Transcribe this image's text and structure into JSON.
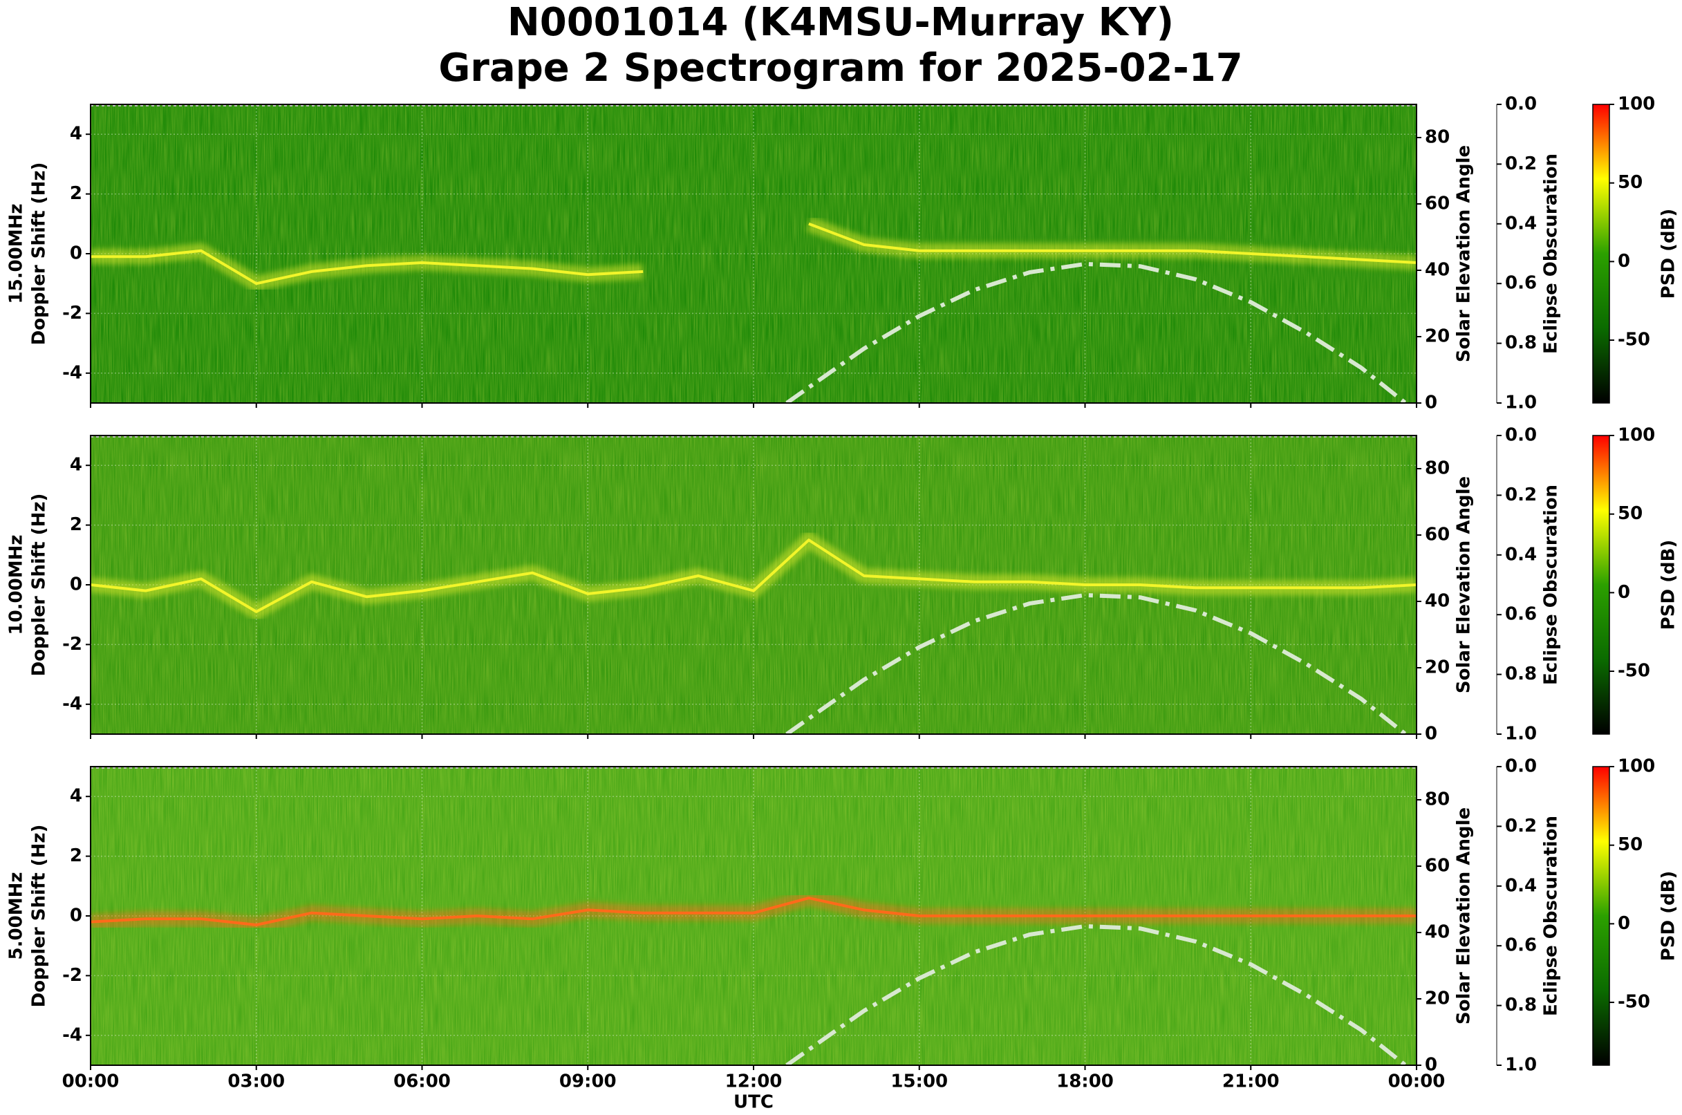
{
  "title": "N0001014 (K4MSU-Murray KY)",
  "subtitle": "Grape 2 Spectrogram for 2025-02-17",
  "chart_data": [
    {
      "type": "spectrogram",
      "ylabel": [
        "15.00MHz",
        "Doppler Shift (Hz)"
      ],
      "ylim": [
        -5,
        5
      ],
      "yticks": [
        -4,
        -2,
        0,
        2,
        4
      ],
      "y2label": "Solar Elevation Angle",
      "y2lim": [
        0,
        90
      ],
      "y2ticks": [
        0,
        20,
        40,
        60,
        80
      ],
      "y3label": "Eclipse Obscuration",
      "y3lim": [
        1,
        0
      ],
      "y3ticks": [
        {
          "value": 0,
          "label": "0.0"
        },
        0.2,
        0.4,
        0.6,
        0.8,
        {
          "value": 1,
          "label": "1.0"
        }
      ],
      "clabel": "PSD (dB)",
      "clim": [
        -90,
        100
      ],
      "cticks": [
        -50,
        0,
        50,
        100
      ],
      "colormap": [
        "#000000",
        "#0b6b00",
        "#2ca000",
        "#ffff00",
        "#ff0000"
      ],
      "background": "#1f8a08",
      "grid": true,
      "series": [
        {
          "color": "#f2f52a",
          "x": [
            0,
            1,
            2,
            3,
            4,
            5,
            6,
            7,
            8,
            9,
            10,
            11,
            12,
            13,
            14,
            15,
            16,
            17,
            18,
            19,
            20,
            21,
            22,
            23,
            24
          ],
          "values": [
            -0.1,
            -0.1,
            0.1,
            -1.0,
            -0.6,
            -0.4,
            -0.3,
            -0.4,
            -0.5,
            -0.7,
            -0.6,
            null,
            null,
            1.0,
            0.3,
            0.1,
            0.1,
            0.1,
            0.1,
            0.1,
            0.1,
            0,
            -0.1,
            -0.2,
            -0.3
          ]
        },
        {
          "color": "#d8e8d0",
          "axis": "y2",
          "style": "dashdot",
          "x": [
            12.6,
            13,
            14,
            15,
            16,
            17,
            18,
            19,
            20,
            21,
            22,
            23,
            23.8
          ],
          "values": [
            0,
            4.7,
            16.4,
            26.2,
            34.1,
            39.4,
            41.9,
            41.2,
            37.3,
            30.4,
            21.2,
            10.6,
            0
          ]
        }
      ]
    },
    {
      "type": "spectrogram",
      "ylabel": [
        "10.00MHz",
        "Doppler Shift (Hz)"
      ],
      "ylim": [
        -5,
        5
      ],
      "yticks": [
        -4,
        -2,
        0,
        2,
        4
      ],
      "y2label": "Solar Elevation Angle",
      "y2lim": [
        0,
        90
      ],
      "y2ticks": [
        0,
        20,
        40,
        60,
        80
      ],
      "y3label": "Eclipse Obscuration",
      "y3lim": [
        1,
        0
      ],
      "y3ticks": [
        {
          "value": 0,
          "label": "0.0"
        },
        0.2,
        0.4,
        0.6,
        0.8,
        {
          "value": 1,
          "label": "1.0"
        }
      ],
      "clabel": "PSD (dB)",
      "clim": [
        -90,
        100
      ],
      "cticks": [
        -50,
        0,
        50,
        100
      ],
      "colormap": [
        "#000000",
        "#0b6b00",
        "#2ca000",
        "#ffff00",
        "#ff0000"
      ],
      "background": "#3a9a10",
      "grid": true,
      "series": [
        {
          "color": "#f2f52a",
          "x": [
            0,
            1,
            2,
            3,
            4,
            5,
            6,
            7,
            8,
            9,
            10,
            11,
            12,
            13,
            14,
            15,
            16,
            17,
            18,
            19,
            20,
            21,
            22,
            23,
            24
          ],
          "values": [
            0,
            -0.2,
            0.2,
            -0.9,
            0.1,
            -0.4,
            -0.2,
            0.1,
            0.4,
            -0.3,
            -0.1,
            0.3,
            -0.2,
            1.5,
            0.3,
            0.2,
            0.1,
            0.1,
            0,
            0,
            -0.1,
            -0.1,
            -0.1,
            -0.1,
            0
          ]
        },
        {
          "color": "#d8e8d0",
          "axis": "y2",
          "style": "dashdot",
          "x": [
            12.6,
            13,
            14,
            15,
            16,
            17,
            18,
            19,
            20,
            21,
            22,
            23,
            23.8
          ],
          "values": [
            0,
            4.7,
            16.4,
            26.2,
            34.1,
            39.4,
            41.9,
            41.2,
            37.3,
            30.4,
            21.2,
            10.6,
            0
          ]
        }
      ]
    },
    {
      "type": "spectrogram",
      "ylabel": [
        "5.00MHz",
        "Doppler Shift (Hz)"
      ],
      "ylim": [
        -5,
        5
      ],
      "yticks": [
        -4,
        -2,
        0,
        2,
        4
      ],
      "y2label": "Solar Elevation Angle",
      "y2lim": [
        0,
        90
      ],
      "y2ticks": [
        0,
        20,
        40,
        60,
        80
      ],
      "y3label": "Eclipse Obscuration",
      "y3lim": [
        1,
        0
      ],
      "y3ticks": [
        {
          "value": 0,
          "label": "0.0"
        },
        0.2,
        0.4,
        0.6,
        0.8,
        {
          "value": 1,
          "label": "1.0"
        }
      ],
      "clabel": "PSD (dB)",
      "clim": [
        -90,
        100
      ],
      "cticks": [
        -50,
        0,
        50,
        100
      ],
      "colormap": [
        "#000000",
        "#0b6b00",
        "#2ca000",
        "#ffff00",
        "#ff0000"
      ],
      "background": "#4aa818",
      "grid": true,
      "xlabel": "UTC",
      "xlim": [
        0,
        24
      ],
      "xticks": [
        {
          "value": 0,
          "label": "00:00"
        },
        {
          "value": 3,
          "label": "03:00"
        },
        {
          "value": 6,
          "label": "06:00"
        },
        {
          "value": 9,
          "label": "09:00"
        },
        {
          "value": 12,
          "label": "12:00"
        },
        {
          "value": 15,
          "label": "15:00"
        },
        {
          "value": 18,
          "label": "18:00"
        },
        {
          "value": 21,
          "label": "21:00"
        },
        {
          "value": 24,
          "label": "00:00"
        }
      ],
      "series": [
        {
          "color": "#ff6a1a",
          "x": [
            0,
            1,
            2,
            3,
            4,
            5,
            6,
            7,
            8,
            9,
            10,
            11,
            12,
            13,
            14,
            15,
            16,
            17,
            18,
            19,
            20,
            21,
            22,
            23,
            24
          ],
          "values": [
            -0.2,
            -0.1,
            -0.1,
            -0.3,
            0.1,
            0,
            -0.1,
            0,
            -0.1,
            0.2,
            0.1,
            0.1,
            0.1,
            0.6,
            0.2,
            0,
            0,
            0,
            0,
            0,
            0,
            0,
            0,
            0,
            0
          ]
        },
        {
          "color": "#d8e8d0",
          "axis": "y2",
          "style": "dashdot",
          "x": [
            12.6,
            13,
            14,
            15,
            16,
            17,
            18,
            19,
            20,
            21,
            22,
            23,
            23.8
          ],
          "values": [
            0,
            4.7,
            16.4,
            26.2,
            34.1,
            39.4,
            41.9,
            41.2,
            37.3,
            30.4,
            21.2,
            10.6,
            0
          ]
        }
      ]
    }
  ]
}
